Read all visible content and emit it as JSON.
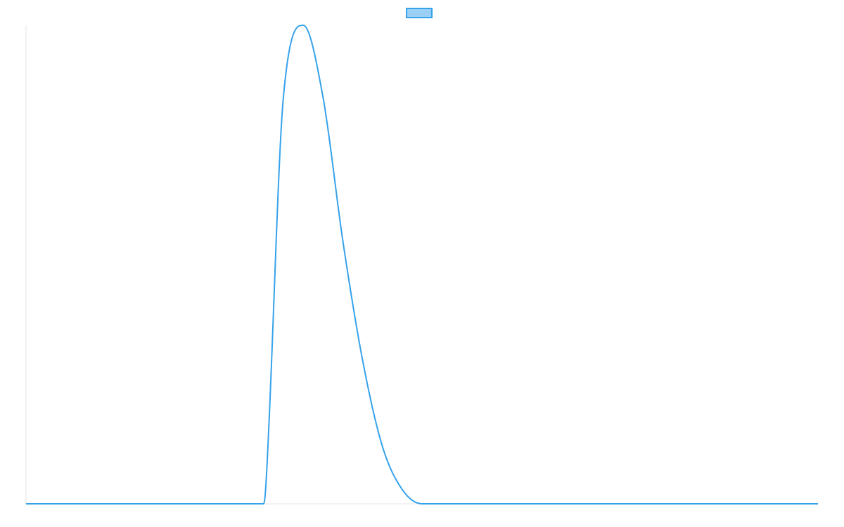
{
  "chart_data": {
    "type": "line",
    "title": "",
    "xlabel": "",
    "ylabel": "",
    "grid": false,
    "legend": {
      "position": "top",
      "show_label": false
    },
    "series": [
      {
        "name": "",
        "color": "#36a2eb",
        "fill": "#9ad0f5",
        "x": [
          0,
          0.5,
          0.55,
          0.595,
          0.6,
          0.605,
          0.65,
          0.7,
          0.75,
          0.8,
          0.85,
          0.9,
          0.95,
          1.0,
          1.5,
          2.0
        ],
        "y": [
          0,
          0,
          0,
          0,
          0,
          0.03,
          0.85,
          1.0,
          0.85,
          0.55,
          0.3,
          0.12,
          0.03,
          0,
          0,
          0
        ]
      }
    ],
    "xlim": [
      0,
      2.0
    ],
    "ylim": [
      0,
      1.0
    ]
  }
}
